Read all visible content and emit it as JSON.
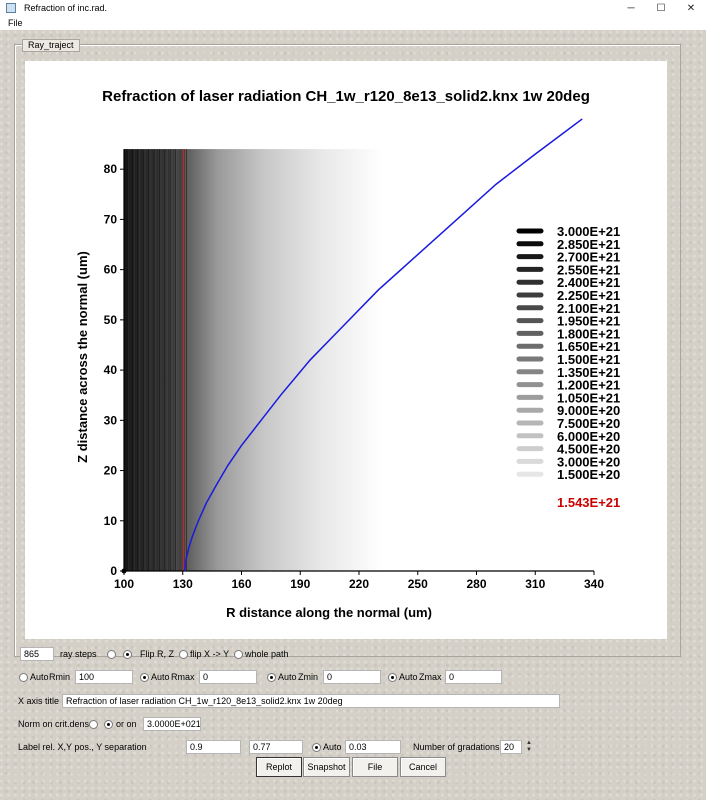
{
  "window": {
    "title": "Refraction of inc.rad.",
    "controls": [
      "─",
      "☐",
      "✕"
    ]
  },
  "menu": {
    "file": "File"
  },
  "group": {
    "tab_label": "Ray_traject"
  },
  "chart_data": {
    "type": "line",
    "title": "Refraction of laser radiation CH_1w_r120_8e13_solid2.knx 1w 20deg",
    "xlabel": "R distance along the normal (um)",
    "ylabel": "Z distance across the normal (um)",
    "xlim": [
      100,
      340
    ],
    "ylim": [
      0,
      84
    ],
    "x_ticks": [
      100,
      130,
      160,
      190,
      220,
      250,
      280,
      310,
      340
    ],
    "y_ticks": [
      0,
      10,
      20,
      30,
      40,
      50,
      60,
      70,
      80
    ],
    "background": "density gradient (dark near R=100, fading toward R=175)",
    "crit_density_line": {
      "x": 130.5,
      "color": "#d02020"
    },
    "series": [
      {
        "color": "#1a1ae0",
        "x": [
          131,
          131.5,
          133,
          135,
          138,
          142,
          147,
          153,
          160,
          170,
          180,
          195,
          210,
          230,
          250,
          270,
          290,
          310,
          334
        ],
        "y": [
          0,
          2,
          4.5,
          7,
          10,
          13.5,
          17,
          21,
          25,
          30,
          35,
          42,
          48,
          56,
          63,
          70,
          77,
          83,
          90
        ]
      }
    ],
    "legend": {
      "placement": "right",
      "entries": [
        "3.000E+21",
        "2.850E+21",
        "2.700E+21",
        "2.550E+21",
        "2.400E+21",
        "2.250E+21",
        "2.100E+21",
        "1.950E+21",
        "1.800E+21",
        "1.650E+21",
        "1.500E+21",
        "1.350E+21",
        "1.200E+21",
        "1.050E+21",
        "9.000E+20",
        "7.500E+20",
        "6.000E+20",
        "4.500E+20",
        "3.000E+20",
        "1.500E+20"
      ],
      "crit_label": "1.543E+21",
      "crit_color": "#cc0000"
    }
  },
  "controls": {
    "ray_steps_value": "865",
    "ray_steps_label": "ray steps",
    "flip_rz_label": "Flip R, Z",
    "flip_xy_label": "flip X -> Y",
    "whole_path_label": "whole path",
    "auto_label": "Auto",
    "rmin_label": "Rmin",
    "rmin_value": "100",
    "rmax_label": "Rmax",
    "rmax_value": "0",
    "zmin_label": "Zmin",
    "zmin_value": "0",
    "zmax_label": "Zmax",
    "zmax_value": "0",
    "x_axis_title_label": "X axis title",
    "x_axis_title_value": "Refraction of laser radiation CH_1w_r120_8e13_solid2.knx 1w 20deg",
    "norm_label": "Norm on crit.dens",
    "or_on_label": "or on",
    "norm_value": "3.0000E+021",
    "label_pos_label": "Label rel. X,Y pos., Y separation",
    "label_x_value": "0.9",
    "label_y_value": "0.77",
    "separation_value": "0.03",
    "gradations_label": "Number of gradations",
    "gradations_value": "20"
  },
  "buttons": {
    "replot": "Replot",
    "snapshot": "Snapshot",
    "file": "File",
    "cancel": "Cancel"
  }
}
